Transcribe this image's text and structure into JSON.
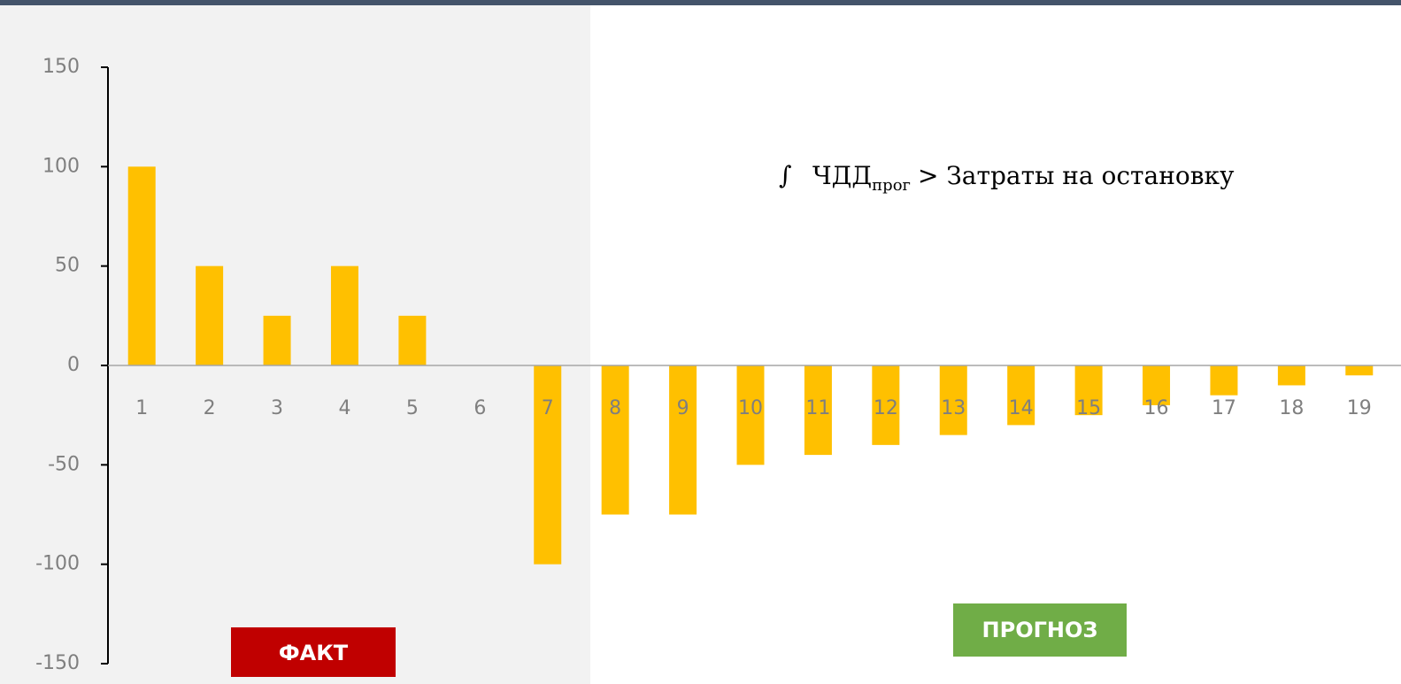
{
  "chart_data": {
    "type": "bar",
    "categories": [
      "1",
      "2",
      "3",
      "4",
      "5",
      "6",
      "7",
      "8",
      "9",
      "10",
      "11",
      "12",
      "13",
      "14",
      "15",
      "16",
      "17",
      "18",
      "19"
    ],
    "values": [
      100,
      50,
      25,
      50,
      25,
      0,
      -100,
      -75,
      -75,
      -50,
      -45,
      -40,
      -35,
      -30,
      -25,
      -20,
      -15,
      -10,
      -5
    ],
    "color": "#ffc000",
    "ylim": [
      -150,
      150
    ],
    "yticks": [
      -150,
      -100,
      -50,
      0,
      50,
      100,
      150
    ],
    "annotations": {
      "integral": "∫",
      "formula_main": "ЧДД",
      "formula_sub": "прог",
      "formula_rest": "> Затраты на остановку",
      "fact_label": "ФАКТ",
      "forecast_label": "ПРОГНОЗ"
    }
  }
}
